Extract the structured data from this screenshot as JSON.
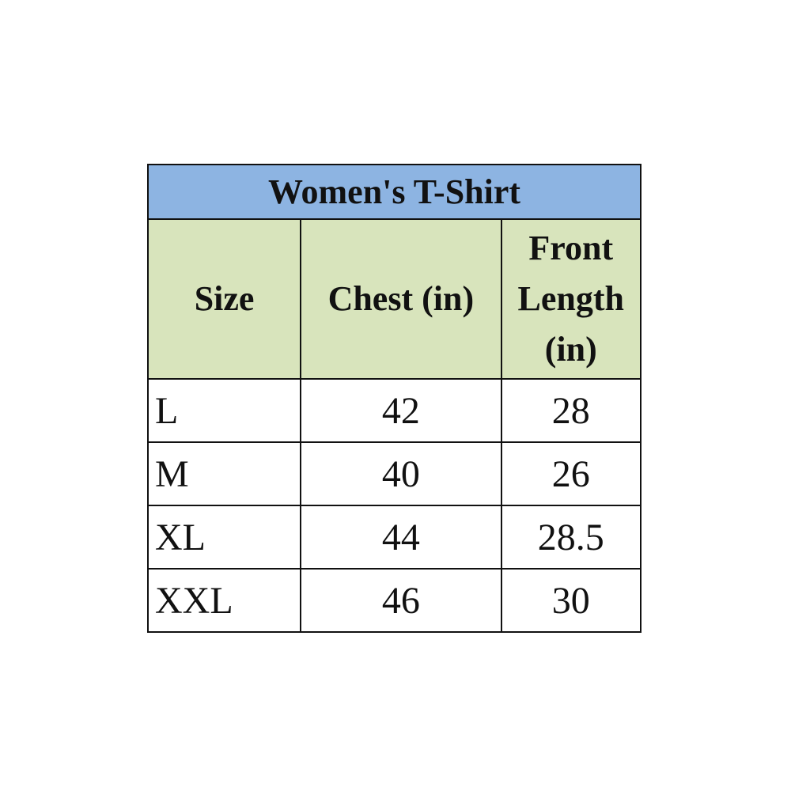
{
  "title": "Women's T-Shirt",
  "headers": [
    "Size",
    "Chest (in)",
    "Front Length (in)"
  ],
  "rows": [
    [
      "L",
      "42",
      "28"
    ],
    [
      "M",
      "40",
      "26"
    ],
    [
      "XL",
      "44",
      "28.5"
    ],
    [
      "XXL",
      "46",
      "30"
    ]
  ],
  "colors": {
    "title_bg": "#8db4e2",
    "header_bg": "#d8e4bc"
  }
}
